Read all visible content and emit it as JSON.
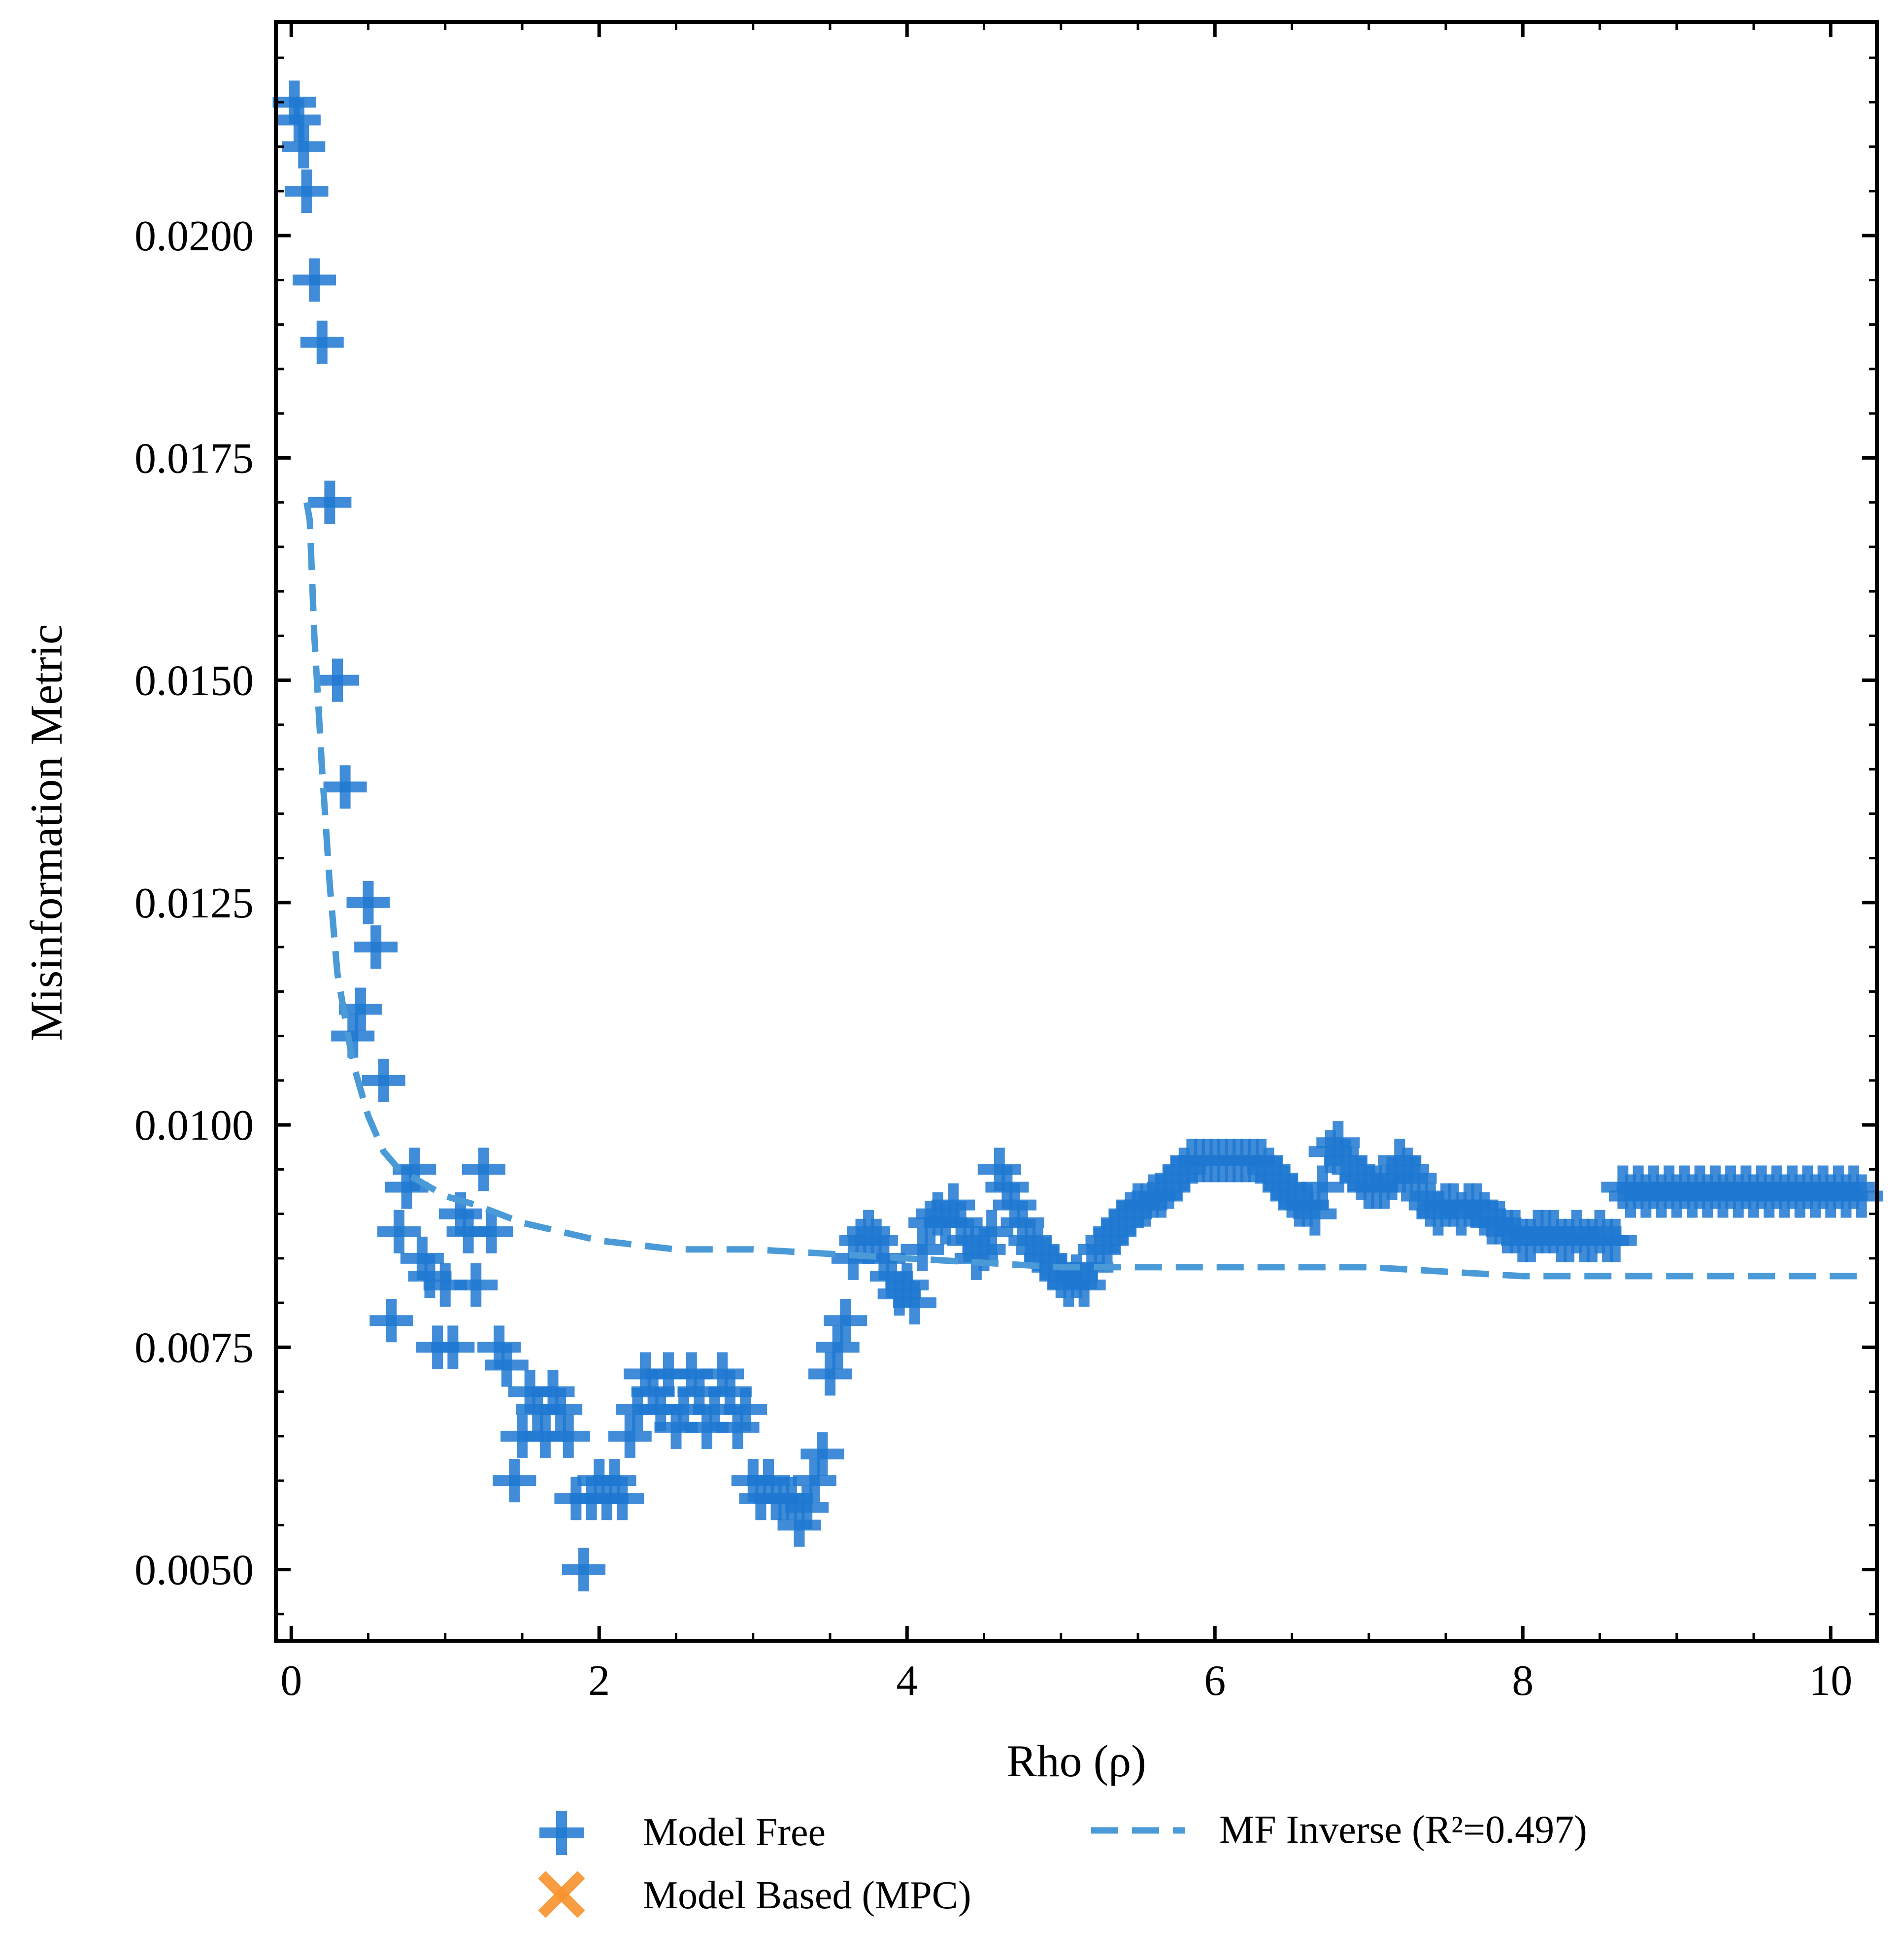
{
  "chart_data": {
    "type": "scatter",
    "xlabel": "Rho (ρ)",
    "ylabel": "Misinformation Metric",
    "xlim": [
      -0.1,
      10.3
    ],
    "ylim": [
      0.0042,
      0.0224
    ],
    "x_ticks": [
      0,
      2,
      4,
      6,
      8,
      10
    ],
    "x_tick_labels": [
      "0",
      "2",
      "4",
      "6",
      "8",
      "10"
    ],
    "y_ticks": [
      0.005,
      0.0075,
      0.01,
      0.0125,
      0.015,
      0.0175,
      0.02
    ],
    "y_tick_labels": [
      "0.0050",
      "0.0075",
      "0.0100",
      "0.0125",
      "0.0150",
      "0.0175",
      "0.0200"
    ],
    "grid": false,
    "legend_placement": "below plot",
    "colors": {
      "model_free": "#1f78d1",
      "model_based": "#f7922e",
      "mf_inverse": "#4a9ad8"
    },
    "series": [
      {
        "name": "Model Free",
        "marker": "plus",
        "points": [
          [
            0.02,
            0.0215
          ],
          [
            0.05,
            0.0213
          ],
          [
            0.08,
            0.021
          ],
          [
            0.1,
            0.0205
          ],
          [
            0.15,
            0.0195
          ],
          [
            0.2,
            0.0188
          ],
          [
            0.25,
            0.017
          ],
          [
            0.3,
            0.015
          ],
          [
            0.35,
            0.0138
          ],
          [
            0.5,
            0.0125
          ],
          [
            0.55,
            0.012
          ],
          [
            0.45,
            0.0113
          ],
          [
            0.4,
            0.011
          ],
          [
            0.6,
            0.0105
          ],
          [
            0.65,
            0.0078
          ],
          [
            0.7,
            0.0088
          ],
          [
            0.75,
            0.0093
          ],
          [
            0.8,
            0.0095
          ],
          [
            0.85,
            0.0085
          ],
          [
            0.9,
            0.0083
          ],
          [
            0.95,
            0.0075
          ],
          [
            1.0,
            0.0082
          ],
          [
            1.05,
            0.0075
          ],
          [
            1.1,
            0.009
          ],
          [
            1.15,
            0.0088
          ],
          [
            1.2,
            0.0082
          ],
          [
            1.25,
            0.0095
          ],
          [
            1.3,
            0.0088
          ],
          [
            1.35,
            0.0075
          ],
          [
            1.4,
            0.0073
          ],
          [
            1.45,
            0.006
          ],
          [
            1.5,
            0.0065
          ],
          [
            1.55,
            0.007
          ],
          [
            1.6,
            0.0068
          ],
          [
            1.65,
            0.0065
          ],
          [
            1.7,
            0.007
          ],
          [
            1.75,
            0.0068
          ],
          [
            1.8,
            0.0065
          ],
          [
            1.85,
            0.0058
          ],
          [
            1.9,
            0.005
          ],
          [
            1.95,
            0.0058
          ],
          [
            2.0,
            0.006
          ],
          [
            2.05,
            0.0058
          ],
          [
            2.1,
            0.006
          ],
          [
            2.15,
            0.0058
          ],
          [
            2.2,
            0.0065
          ],
          [
            2.25,
            0.0068
          ],
          [
            2.3,
            0.0072
          ],
          [
            2.35,
            0.007
          ],
          [
            2.4,
            0.0068
          ],
          [
            2.45,
            0.0072
          ],
          [
            2.5,
            0.0066
          ],
          [
            2.55,
            0.0068
          ],
          [
            2.6,
            0.0072
          ],
          [
            2.65,
            0.007
          ],
          [
            2.7,
            0.0066
          ],
          [
            2.75,
            0.0068
          ],
          [
            2.8,
            0.0072
          ],
          [
            2.85,
            0.007
          ],
          [
            2.9,
            0.0066
          ],
          [
            2.95,
            0.0068
          ],
          [
            3.0,
            0.006
          ],
          [
            3.05,
            0.0058
          ],
          [
            3.1,
            0.006
          ],
          [
            3.15,
            0.0058
          ],
          [
            3.2,
            0.0058
          ],
          [
            3.25,
            0.0058
          ],
          [
            3.3,
            0.0055
          ],
          [
            3.35,
            0.0057
          ],
          [
            3.4,
            0.006
          ],
          [
            3.45,
            0.0063
          ],
          [
            3.5,
            0.0072
          ],
          [
            3.55,
            0.0075
          ],
          [
            3.6,
            0.0078
          ],
          [
            3.65,
            0.0085
          ],
          [
            3.7,
            0.0087
          ],
          [
            3.75,
            0.0088
          ],
          [
            3.8,
            0.0087
          ],
          [
            3.85,
            0.0085
          ],
          [
            3.9,
            0.0083
          ],
          [
            3.95,
            0.0081
          ],
          [
            4.0,
            0.0082
          ],
          [
            4.05,
            0.008
          ],
          [
            4.1,
            0.0086
          ],
          [
            4.15,
            0.0089
          ],
          [
            4.2,
            0.009
          ],
          [
            4.25,
            0.0089
          ],
          [
            4.3,
            0.0091
          ],
          [
            4.35,
            0.0089
          ],
          [
            4.4,
            0.0087
          ],
          [
            4.45,
            0.0085
          ],
          [
            4.5,
            0.0086
          ],
          [
            4.55,
            0.0088
          ],
          [
            4.6,
            0.0095
          ],
          [
            4.65,
            0.0093
          ],
          [
            4.7,
            0.0091
          ],
          [
            4.75,
            0.0089
          ],
          [
            4.8,
            0.0087
          ],
          [
            4.85,
            0.0086
          ],
          [
            4.9,
            0.0085
          ],
          [
            4.95,
            0.0084
          ],
          [
            5.0,
            0.0083
          ],
          [
            5.05,
            0.0082
          ],
          [
            5.1,
            0.0083
          ],
          [
            5.15,
            0.0082
          ],
          [
            5.2,
            0.0084
          ],
          [
            5.25,
            0.0086
          ],
          [
            5.3,
            0.0087
          ],
          [
            5.35,
            0.0088
          ],
          [
            5.4,
            0.0089
          ],
          [
            5.45,
            0.009
          ],
          [
            5.5,
            0.0091
          ],
          [
            5.55,
            0.0091
          ],
          [
            5.6,
            0.0092
          ],
          [
            5.65,
            0.0092
          ],
          [
            5.7,
            0.0093
          ],
          [
            5.75,
            0.0094
          ],
          [
            5.8,
            0.0095
          ],
          [
            5.85,
            0.0096
          ],
          [
            5.9,
            0.0096
          ],
          [
            5.95,
            0.0096
          ],
          [
            6.0,
            0.0096
          ],
          [
            6.05,
            0.0096
          ],
          [
            6.1,
            0.0096
          ],
          [
            6.15,
            0.0096
          ],
          [
            6.2,
            0.0096
          ],
          [
            6.25,
            0.0096
          ],
          [
            6.3,
            0.0096
          ],
          [
            6.35,
            0.0095
          ],
          [
            6.4,
            0.0094
          ],
          [
            6.45,
            0.0093
          ],
          [
            6.5,
            0.0092
          ],
          [
            6.55,
            0.0091
          ],
          [
            6.6,
            0.0091
          ],
          [
            6.65,
            0.009
          ],
          [
            6.7,
            0.0093
          ],
          [
            6.75,
            0.0097
          ],
          [
            6.8,
            0.0098
          ],
          [
            6.85,
            0.0096
          ],
          [
            6.9,
            0.0095
          ],
          [
            6.95,
            0.0094
          ],
          [
            7.0,
            0.0093
          ],
          [
            7.05,
            0.0093
          ],
          [
            7.1,
            0.0093
          ],
          [
            7.15,
            0.0094
          ],
          [
            7.2,
            0.0096
          ],
          [
            7.25,
            0.0095
          ],
          [
            7.3,
            0.0094
          ],
          [
            7.35,
            0.0092
          ],
          [
            7.4,
            0.0091
          ],
          [
            7.45,
            0.009
          ],
          [
            7.5,
            0.0091
          ],
          [
            7.55,
            0.0091
          ],
          [
            7.6,
            0.009
          ],
          [
            7.65,
            0.0091
          ],
          [
            7.7,
            0.0091
          ],
          [
            7.75,
            0.009
          ],
          [
            7.8,
            0.0089
          ],
          [
            7.85,
            0.0089
          ],
          [
            7.9,
            0.0088
          ],
          [
            7.95,
            0.0088
          ],
          [
            8.0,
            0.0087
          ],
          [
            8.05,
            0.0087
          ],
          [
            8.1,
            0.0088
          ],
          [
            8.15,
            0.0088
          ],
          [
            8.2,
            0.0088
          ],
          [
            8.25,
            0.0087
          ],
          [
            8.3,
            0.0087
          ],
          [
            8.35,
            0.0088
          ],
          [
            8.4,
            0.0087
          ],
          [
            8.45,
            0.0087
          ],
          [
            8.5,
            0.0088
          ],
          [
            8.55,
            0.0087
          ],
          [
            8.6,
            0.0087
          ],
          [
            8.65,
            0.0093
          ],
          [
            8.7,
            0.0092
          ],
          [
            8.75,
            0.0093
          ],
          [
            8.8,
            0.0092
          ],
          [
            8.85,
            0.0093
          ],
          [
            8.9,
            0.0092
          ],
          [
            8.95,
            0.0093
          ],
          [
            9.0,
            0.0092
          ],
          [
            9.05,
            0.0093
          ],
          [
            9.1,
            0.0092
          ],
          [
            9.15,
            0.0093
          ],
          [
            9.2,
            0.0092
          ],
          [
            9.25,
            0.0093
          ],
          [
            9.3,
            0.0092
          ],
          [
            9.35,
            0.0093
          ],
          [
            9.4,
            0.0092
          ],
          [
            9.45,
            0.0093
          ],
          [
            9.5,
            0.0092
          ],
          [
            9.55,
            0.0093
          ],
          [
            9.6,
            0.0092
          ],
          [
            9.65,
            0.0093
          ],
          [
            9.7,
            0.0092
          ],
          [
            9.75,
            0.0093
          ],
          [
            9.8,
            0.0092
          ],
          [
            9.85,
            0.0093
          ],
          [
            9.9,
            0.0092
          ],
          [
            9.95,
            0.0093
          ],
          [
            10.0,
            0.0092
          ],
          [
            10.05,
            0.0093
          ],
          [
            10.1,
            0.0092
          ],
          [
            10.15,
            0.0093
          ],
          [
            10.2,
            0.0092
          ]
        ]
      },
      {
        "name": "Model Based (MPC)",
        "marker": "x",
        "points": []
      },
      {
        "name": "MF Inverse (R²=0.497)",
        "line": "dashed",
        "x": [
          0.1,
          0.12,
          0.15,
          0.2,
          0.25,
          0.3,
          0.4,
          0.5,
          0.6,
          0.7,
          0.8,
          1.0,
          1.2,
          1.5,
          2.0,
          2.5,
          3.0,
          4.0,
          5.0,
          6.0,
          7.0,
          8.0,
          9.0,
          10.2
        ],
        "y": [
          0.017,
          0.0168,
          0.0155,
          0.014,
          0.0127,
          0.0117,
          0.0107,
          0.0101,
          0.0097,
          0.0095,
          0.0094,
          0.0092,
          0.0091,
          0.0089,
          0.0087,
          0.0086,
          0.0086,
          0.0085,
          0.0084,
          0.0084,
          0.0084,
          0.0083,
          0.0083,
          0.0083
        ]
      }
    ],
    "legend": [
      {
        "label": "Model Free",
        "marker": "plus",
        "color": "#1f78d1"
      },
      {
        "label": "Model Based (MPC)",
        "marker": "x",
        "color": "#f7922e"
      },
      {
        "label": "MF Inverse (R²=0.497)",
        "marker": "dashed-line",
        "color": "#4a9ad8"
      }
    ]
  }
}
